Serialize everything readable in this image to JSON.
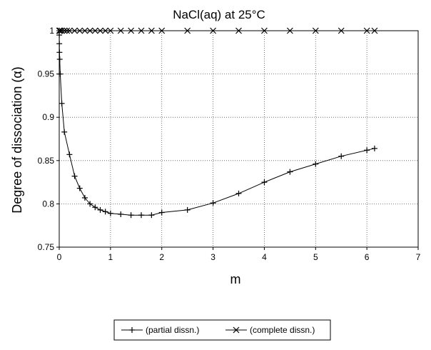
{
  "chart_data": {
    "type": "line",
    "title": "NaCl(aq) at 25°C",
    "xlabel": "m",
    "ylabel": "Degree of dissociation (α)",
    "xlim": [
      0,
      7
    ],
    "ylim": [
      0.75,
      1.0
    ],
    "xticks": [
      "0",
      "1",
      "2",
      "3",
      "4",
      "5",
      "6",
      "7"
    ],
    "yticks": [
      "0.75",
      "0.8",
      "0.85",
      "0.9",
      "0.95",
      "1"
    ],
    "grid": "dotted",
    "legend_position": "bottom",
    "series": [
      {
        "name": "(partial dissn.)",
        "marker": "plus",
        "x": [
          0.001,
          0.002,
          0.005,
          0.01,
          0.02,
          0.05,
          0.1,
          0.2,
          0.3,
          0.4,
          0.5,
          0.6,
          0.7,
          0.8,
          0.9,
          1.0,
          1.2,
          1.4,
          1.6,
          1.8,
          2.0,
          2.5,
          3.0,
          3.5,
          4.0,
          4.5,
          5.0,
          5.5,
          6.0,
          6.15
        ],
        "y": [
          0.995,
          0.985,
          0.975,
          0.967,
          0.95,
          0.916,
          0.883,
          0.857,
          0.832,
          0.818,
          0.807,
          0.8,
          0.796,
          0.793,
          0.791,
          0.789,
          0.788,
          0.787,
          0.787,
          0.787,
          0.79,
          0.793,
          0.801,
          0.812,
          0.825,
          0.837,
          0.846,
          0.855,
          0.862,
          0.864
        ]
      },
      {
        "name": "(complete dissn.)",
        "marker": "x",
        "x": [
          0.001,
          0.01,
          0.02,
          0.05,
          0.1,
          0.15,
          0.2,
          0.3,
          0.4,
          0.5,
          0.6,
          0.7,
          0.8,
          0.9,
          1.0,
          1.2,
          1.4,
          1.6,
          1.8,
          2.0,
          2.5,
          3.0,
          3.5,
          4.0,
          4.5,
          5.0,
          5.5,
          6.0,
          6.15
        ],
        "y": [
          1,
          1,
          1,
          1,
          1,
          1,
          1,
          1,
          1,
          1,
          1,
          1,
          1,
          1,
          1,
          1,
          1,
          1,
          1,
          1,
          1,
          1,
          1,
          1,
          1,
          1,
          1,
          1,
          1
        ]
      }
    ]
  }
}
